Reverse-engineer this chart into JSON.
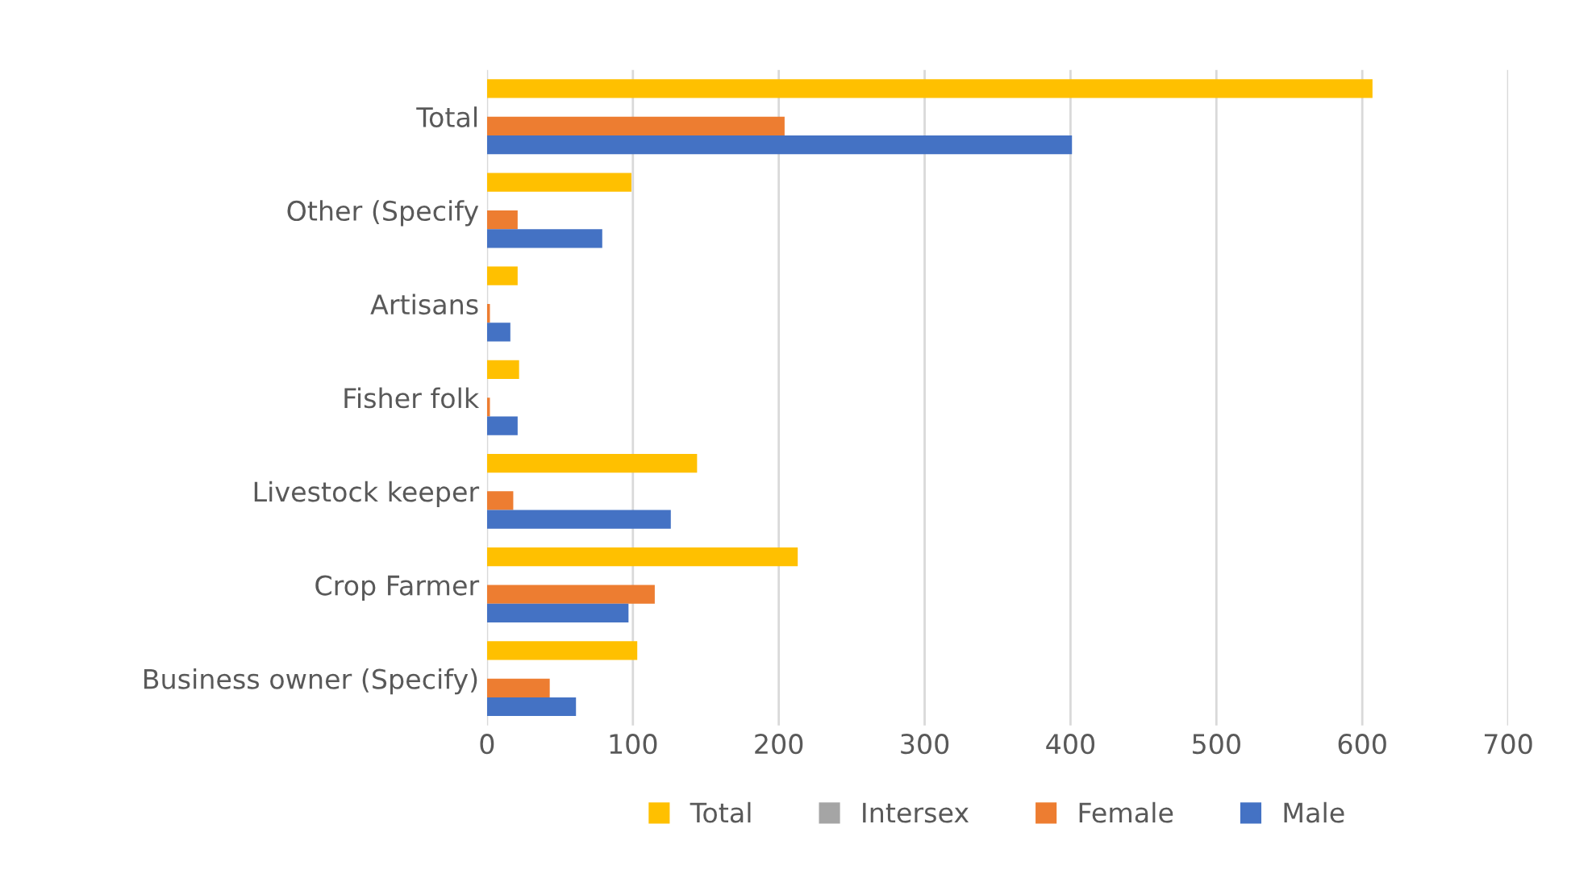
{
  "chart_data": {
    "type": "bar",
    "orientation": "horizontal",
    "categories": [
      "Total",
      "Other (Specify",
      "Artisans",
      "Fisher folk",
      "Livestock keeper",
      "Crop Farmer",
      "Business owner (Specify)"
    ],
    "series": [
      {
        "name": "Total",
        "color": "#ffc000",
        "values": [
          607,
          99,
          21,
          22,
          144,
          213,
          103
        ]
      },
      {
        "name": "Intersex",
        "color": "#a5a5a5",
        "values": [
          0,
          0,
          0,
          0,
          0,
          0,
          0
        ]
      },
      {
        "name": "Female",
        "color": "#ed7d31",
        "values": [
          204,
          21,
          2,
          2,
          18,
          115,
          43
        ]
      },
      {
        "name": "Male",
        "color": "#4472c4",
        "values": [
          401,
          79,
          16,
          21,
          126,
          97,
          61
        ]
      }
    ],
    "xlim": [
      0,
      700
    ],
    "xticks": [
      0,
      100,
      200,
      300,
      400,
      500,
      600,
      700
    ],
    "grid": "x",
    "legend": "bottom"
  }
}
